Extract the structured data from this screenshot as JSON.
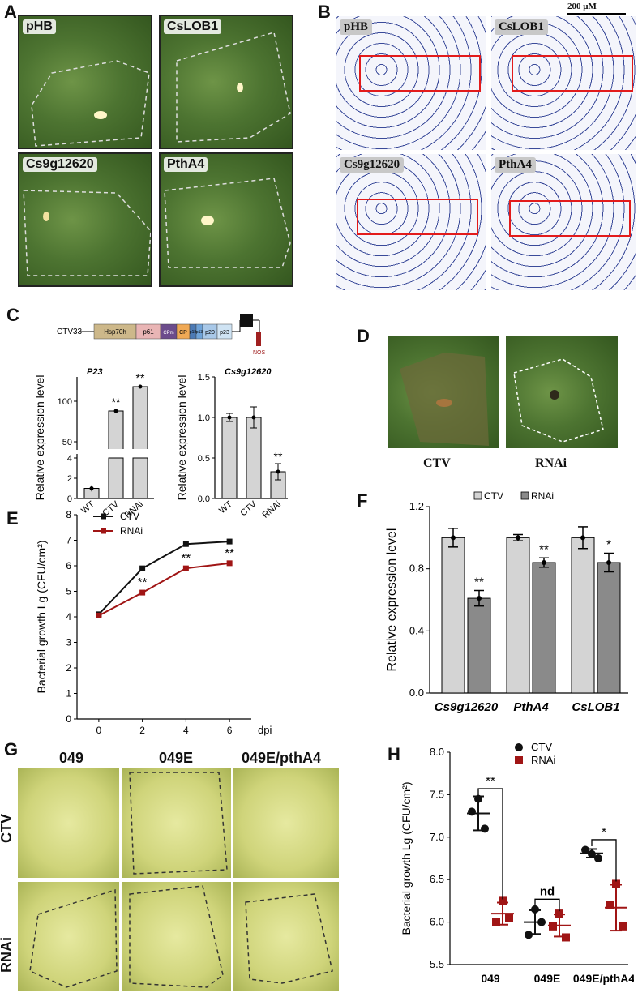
{
  "panels": {
    "A": "A",
    "B": "B",
    "C": "C",
    "D": "D",
    "E": "E",
    "F": "F",
    "G": "G",
    "H": "H"
  },
  "panelA": {
    "labels": [
      "pHB",
      "CsLOB1",
      "Cs9g12620",
      "PthA4"
    ]
  },
  "panelB": {
    "labels": [
      "pHB",
      "CsLOB1",
      "Cs9g12620",
      "PthA4"
    ],
    "scale": "200 μM"
  },
  "panelC": {
    "construct_name": "CTV33",
    "segments": [
      "Hsp70h",
      "p61",
      "CPm",
      "CP",
      "p18",
      "p13",
      "p20",
      "p23"
    ],
    "nos": "NOS",
    "left_title": "P23",
    "right_title": "Cs9g12620",
    "ylabel": "Relative expression level"
  },
  "panelD": {
    "labels": [
      "CTV",
      "RNAi"
    ]
  },
  "panelG": {
    "cols": [
      "049",
      "049E",
      "049E/pthA4"
    ],
    "rows": [
      "CTV",
      "RNAi"
    ]
  },
  "chart_data": [
    {
      "id": "C-left",
      "type": "bar",
      "title": "P23",
      "categories": [
        "WT",
        "CTV",
        "RNAi"
      ],
      "values": [
        1,
        88,
        118
      ],
      "errors": [
        0.3,
        2,
        2
      ],
      "ylabel": "Relative expression level",
      "broken_axis": {
        "lower": [
          0,
          4
        ],
        "upper": [
          50,
          130
        ]
      },
      "yticks_lower": [
        0,
        2,
        4
      ],
      "yticks_upper": [
        50,
        100
      ],
      "significance": [
        "",
        "**",
        "**"
      ]
    },
    {
      "id": "C-right",
      "type": "bar",
      "title": "Cs9g12620",
      "categories": [
        "WT",
        "CTV",
        "RNAi"
      ],
      "values": [
        1.0,
        1.0,
        0.33
      ],
      "errors": [
        0.05,
        0.13,
        0.1
      ],
      "ylabel": "Relative expression level",
      "ylim": [
        0,
        1.5
      ],
      "yticks": [
        0.0,
        0.5,
        1.0,
        1.5
      ],
      "significance": [
        "",
        "",
        "**"
      ]
    },
    {
      "id": "E",
      "type": "line",
      "x": [
        0,
        2,
        4,
        6
      ],
      "series": [
        {
          "name": "CTV",
          "values": [
            4.1,
            5.9,
            6.85,
            6.95
          ],
          "color": "#111111"
        },
        {
          "name": "RNAi",
          "values": [
            4.05,
            4.95,
            5.9,
            6.1
          ],
          "color": "#a01515"
        }
      ],
      "xlabel": "dpi",
      "ylabel": "Bacterial growth Lg (CFU/cm²)",
      "ylim": [
        0,
        8
      ],
      "yticks": [
        0,
        1,
        2,
        3,
        4,
        5,
        6,
        7,
        8
      ],
      "xticks": [
        0,
        2,
        4,
        6
      ],
      "significance": [
        "",
        "**",
        "**",
        "**"
      ]
    },
    {
      "id": "F",
      "type": "bar",
      "categories": [
        "Cs9g12620",
        "PthA4",
        "CsLOB1"
      ],
      "series": [
        {
          "name": "CTV",
          "values": [
            1.0,
            1.0,
            1.0
          ],
          "errors": [
            0.06,
            0.02,
            0.07
          ],
          "color": "#d4d4d4"
        },
        {
          "name": "RNAi",
          "values": [
            0.61,
            0.84,
            0.84
          ],
          "errors": [
            0.05,
            0.03,
            0.06
          ],
          "color": "#8a8a8a"
        }
      ],
      "ylabel": "Relative expression level",
      "ylim": [
        0,
        1.2
      ],
      "yticks": [
        0.0,
        0.4,
        0.8,
        1.2
      ],
      "significance": [
        "**",
        "**",
        "*"
      ]
    },
    {
      "id": "H",
      "type": "scatter",
      "categories": [
        "049",
        "049E",
        "049E/pthA4"
      ],
      "series": [
        {
          "name": "CTV",
          "points": [
            [
              7.45,
              7.3,
              7.1
            ],
            [
              6.15,
              5.85,
              6.0
            ],
            [
              6.8,
              6.85,
              6.75
            ]
          ],
          "mean": [
            7.28,
            6.0,
            6.81
          ],
          "sd": [
            0.2,
            0.14,
            0.05
          ],
          "color": "#111111"
        },
        {
          "name": "RNAi",
          "points": [
            [
              6.25,
              6.0,
              6.05
            ],
            [
              6.1,
              5.95,
              5.82
            ],
            [
              6.45,
              6.2,
              5.95
            ]
          ],
          "mean": [
            6.1,
            5.96,
            6.17
          ],
          "sd": [
            0.13,
            0.13,
            0.27
          ],
          "color": "#a01515"
        }
      ],
      "ylabel": "Bacterial growth Lg (CFU/cm²)",
      "ylim": [
        5.5,
        8.0
      ],
      "yticks": [
        5.5,
        6.0,
        6.5,
        7.0,
        7.5,
        8.0
      ],
      "significance": [
        "**",
        "nd",
        "*"
      ]
    }
  ]
}
